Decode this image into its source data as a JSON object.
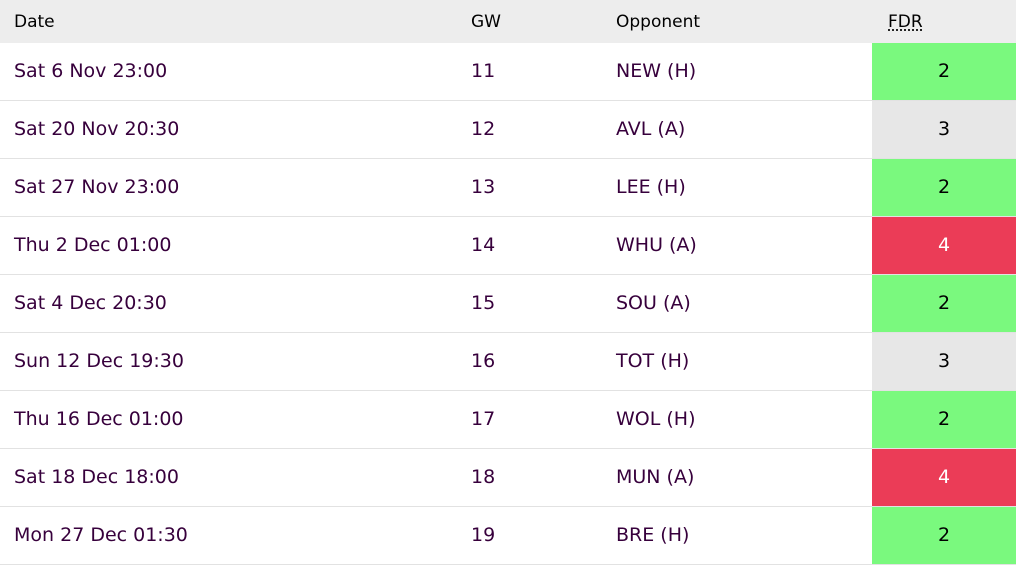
{
  "colors": {
    "fdr_2": "#7af97e",
    "fdr_3": "#e7e7e7",
    "fdr_4": "#eb3c57",
    "fdr_4_text": "#ffffff",
    "header_bg": "#ededed",
    "text": "#37003c"
  },
  "header": {
    "date": "Date",
    "gw": "GW",
    "opponent": "Opponent",
    "fdr": "FDR"
  },
  "fixtures": [
    {
      "date": "Sat 6 Nov 23:00",
      "gw": "11",
      "opponent": "NEW (H)",
      "fdr": "2"
    },
    {
      "date": "Sat 20 Nov 20:30",
      "gw": "12",
      "opponent": "AVL (A)",
      "fdr": "3"
    },
    {
      "date": "Sat 27 Nov 23:00",
      "gw": "13",
      "opponent": "LEE (H)",
      "fdr": "2"
    },
    {
      "date": "Thu 2 Dec 01:00",
      "gw": "14",
      "opponent": "WHU (A)",
      "fdr": "4"
    },
    {
      "date": "Sat 4 Dec 20:30",
      "gw": "15",
      "opponent": "SOU (A)",
      "fdr": "2"
    },
    {
      "date": "Sun 12 Dec 19:30",
      "gw": "16",
      "opponent": "TOT (H)",
      "fdr": "3"
    },
    {
      "date": "Thu 16 Dec 01:00",
      "gw": "17",
      "opponent": "WOL (H)",
      "fdr": "2"
    },
    {
      "date": "Sat 18 Dec 18:00",
      "gw": "18",
      "opponent": "MUN (A)",
      "fdr": "4"
    },
    {
      "date": "Mon 27 Dec 01:30",
      "gw": "19",
      "opponent": "BRE (H)",
      "fdr": "2"
    }
  ]
}
